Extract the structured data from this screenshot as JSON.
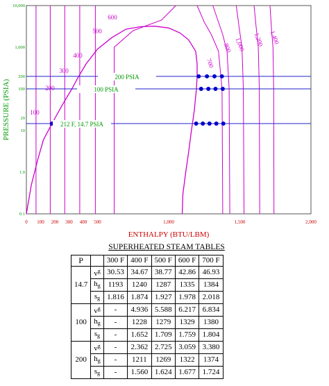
{
  "chart_data": {
    "type": "line",
    "title": "",
    "xlabel": "ENTHALPY (BTU/LBM)",
    "ylabel": "PRESSURE (PSIA)",
    "xlim": [
      0,
      2000
    ],
    "ylim": [
      0.1,
      10000
    ],
    "y_scale": "log",
    "x_ticks": [
      0,
      100,
      200,
      300,
      400,
      500,
      1000,
      1500,
      2000
    ],
    "x_tick_labels": [
      "0",
      "100",
      "200",
      "300",
      "400",
      "500",
      "1,000",
      "1,500",
      "2,000"
    ],
    "y_ticks": [
      0.1,
      1,
      10,
      20,
      100,
      200,
      1000,
      10000
    ],
    "y_tick_labels": [
      "0.1",
      "1.0",
      "10",
      "20",
      "100",
      "200",
      "1,000",
      "10,000"
    ],
    "colors": {
      "isotherms": "#cc00cc",
      "isobars": "#2222cc",
      "labels": "#009900",
      "axis_text": "#cc0000",
      "points": "#0000cc"
    },
    "saturation_dome": [
      [
        0,
        0.1
      ],
      [
        35,
        0.5
      ],
      [
        80,
        2
      ],
      [
        120,
        6
      ],
      [
        180,
        14.7
      ],
      [
        250,
        40
      ],
      [
        320,
        100
      ],
      [
        360,
        180
      ],
      [
        420,
        400
      ],
      [
        500,
        900
      ],
      [
        600,
        1700
      ],
      [
        700,
        2700
      ],
      [
        800,
        3100
      ],
      [
        900,
        3200
      ],
      [
        1000,
        2900
      ],
      [
        1080,
        2200
      ],
      [
        1140,
        1500
      ],
      [
        1190,
        800
      ],
      [
        1200,
        400
      ],
      [
        1200,
        200
      ],
      [
        1195,
        100
      ],
      [
        1180,
        30
      ],
      [
        1160,
        10
      ],
      [
        1140,
        3
      ],
      [
        1120,
        1
      ],
      [
        1100,
        0.3
      ],
      [
        1095,
        0.1
      ]
    ],
    "isotherm_labels": [
      "100",
      "200",
      "300",
      "400",
      "500",
      "600",
      "700",
      "800",
      "1,000",
      "1,200",
      "1,400"
    ],
    "isotherms": [
      {
        "name": "100",
        "pts": [
          [
            68,
            0.1
          ],
          [
            68,
            10000
          ]
        ]
      },
      {
        "name": "200",
        "pts": [
          [
            168,
            0.1
          ],
          [
            168,
            10000
          ]
        ]
      },
      {
        "name": "300",
        "pts": [
          [
            270,
            0.1
          ],
          [
            270,
            10000
          ]
        ]
      },
      {
        "name": "400",
        "pts": [
          [
            375,
            0.1
          ],
          [
            375,
            10000
          ]
        ]
      },
      {
        "name": "500",
        "pts": [
          [
            485,
            0.1
          ],
          [
            485,
            10000
          ]
        ]
      },
      {
        "name": "600",
        "pts": [
          [
            617,
            0.1
          ],
          [
            617,
            1000
          ],
          [
            750,
            2500
          ],
          [
            950,
            4500
          ],
          [
            1050,
            10000
          ]
        ]
      },
      {
        "name": "700",
        "pts": [
          [
            1380,
            0.1
          ],
          [
            1375,
            100
          ],
          [
            1350,
            800
          ],
          [
            1300,
            2000
          ],
          [
            1250,
            4000
          ],
          [
            1200,
            10000
          ]
        ]
      },
      {
        "name": "800",
        "pts": [
          [
            1430,
            0.1
          ],
          [
            1425,
            100
          ],
          [
            1410,
            800
          ],
          [
            1380,
            2000
          ],
          [
            1350,
            4000
          ],
          [
            1310,
            10000
          ]
        ]
      },
      {
        "name": "1,000",
        "pts": [
          [
            1530,
            0.1
          ],
          [
            1525,
            100
          ],
          [
            1515,
            1000
          ],
          [
            1495,
            3000
          ],
          [
            1475,
            10000
          ]
        ]
      },
      {
        "name": "1,200",
        "pts": [
          [
            1640,
            0.1
          ],
          [
            1637,
            100
          ],
          [
            1630,
            1000
          ],
          [
            1615,
            3000
          ],
          [
            1600,
            10000
          ]
        ]
      },
      {
        "name": "1,400",
        "pts": [
          [
            1740,
            0.1
          ],
          [
            1738,
            100
          ],
          [
            1733,
            1000
          ],
          [
            1722,
            3000
          ],
          [
            1712,
            10000
          ]
        ]
      }
    ],
    "isobar_labels": [
      "200 PSIA",
      "100 PSIA",
      "212 F, 14.7 PSIA"
    ],
    "isobars": [
      {
        "name": "200 PSIA",
        "y": 200
      },
      {
        "name": "100 PSIA",
        "y": 100
      },
      {
        "name": "212 F, 14.7 PSIA",
        "y": 14.7
      }
    ],
    "points": [
      {
        "x": 180,
        "y": 14.7
      },
      {
        "x": 1193,
        "y": 14.7
      },
      {
        "x": 1240,
        "y": 14.7
      },
      {
        "x": 1287,
        "y": 14.7
      },
      {
        "x": 1335,
        "y": 14.7
      },
      {
        "x": 1384,
        "y": 14.7
      },
      {
        "x": 1228,
        "y": 100
      },
      {
        "x": 1279,
        "y": 100
      },
      {
        "x": 1329,
        "y": 100
      },
      {
        "x": 1380,
        "y": 100
      },
      {
        "x": 1211,
        "y": 200
      },
      {
        "x": 1269,
        "y": 200
      },
      {
        "x": 1322,
        "y": 200
      },
      {
        "x": 1374,
        "y": 200
      }
    ]
  },
  "table": {
    "title": "SUPERHEATED STEAM TABLES",
    "p_label": "P",
    "col_headers": [
      "300 F",
      "400 F",
      "500 F",
      "600 F",
      "700 F"
    ],
    "props": [
      {
        "main": "v",
        "sub": "g"
      },
      {
        "main": "h",
        "sub": "g"
      },
      {
        "main": "s",
        "sub": "g"
      }
    ],
    "groups": [
      {
        "p": "14.7",
        "rows": [
          [
            "30.53",
            "34.67",
            "38.77",
            "42.86",
            "46.93"
          ],
          [
            "1193",
            "1240",
            "1287",
            "1335",
            "1384"
          ],
          [
            "1.816",
            "1.874",
            "1.927",
            "1.978",
            "2.018"
          ]
        ]
      },
      {
        "p": "100",
        "rows": [
          [
            "-",
            "4.936",
            "5.588",
            "6.217",
            "6.834"
          ],
          [
            "-",
            "1228",
            "1279",
            "1329",
            "1380"
          ],
          [
            "-",
            "1.652",
            "1.709",
            "1.759",
            "1.804"
          ]
        ]
      },
      {
        "p": "200",
        "rows": [
          [
            "-",
            "2.362",
            "2.725",
            "3.059",
            "3.380"
          ],
          [
            "-",
            "1211",
            "1269",
            "1322",
            "1374"
          ],
          [
            "-",
            "1.560",
            "1.624",
            "1.677",
            "1.724"
          ]
        ]
      }
    ]
  }
}
